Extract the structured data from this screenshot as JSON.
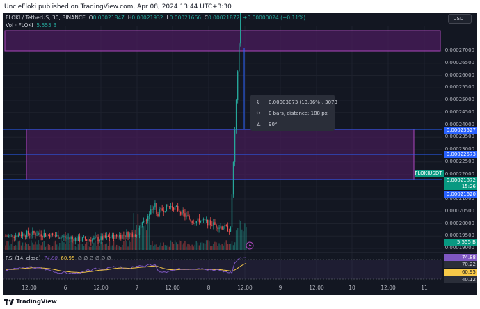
{
  "header": {
    "published_text": "UncleFloki published on TradingView.com, Apr 08, 2024 13:44 UTC+3:30"
  },
  "legend": {
    "symbol_line": "FLOKI / TetherUS, 30, BINANCE",
    "open_label": "O",
    "open": "0.00021847",
    "high_label": "H",
    "high": "0.00021932",
    "low_label": "L",
    "low": "0.00021666",
    "close_label": "C",
    "close": "0.00021872",
    "change": "+0.00000024 (+0.11%)",
    "vol_label": "Vol · FLOKI",
    "vol_value": "5.555 B"
  },
  "currency_button": "USDT",
  "price_axis": {
    "ticks": [
      "0.00027000",
      "0.00026500",
      "0.00026000",
      "0.00025500",
      "0.00025000",
      "0.00024500",
      "0.00024000",
      "0.00023500",
      "0.00023000",
      "0.00022500",
      "0.00022000",
      "0.00021500",
      "0.00021000",
      "0.00020500",
      "0.00020000",
      "0.00019500",
      "0.00019000"
    ],
    "badge_upper": "0.00023527",
    "badge_mid": "0.00022573",
    "badge_symbol": "FLOKIUSDT",
    "badge_price": "0.00021872",
    "badge_countdown": "15:26",
    "badge_lower": "0.00021620",
    "badge_volume": "5.555 B",
    "rsi_ticks": [
      "74.88",
      "70.22",
      "60.95",
      "40.12"
    ]
  },
  "time_axis": {
    "labels": [
      "12:00",
      "6",
      "12:00",
      "7",
      "12:00",
      "8",
      "12:00",
      "9",
      "12:00",
      "10",
      "12:00",
      "11"
    ]
  },
  "measure_tooltip": {
    "price_range": "0.00003073 (13.06%), 3073",
    "bars": "0 bars, distance: 188 px",
    "angle": "90°"
  },
  "rsi": {
    "label": "RSI (14, close)",
    "value1": "74.88",
    "value2": "60.95",
    "placeholders": "∅ ∅ ∅ ∅ ∅ ∅"
  },
  "footer": {
    "brand": "TradingView"
  },
  "colors": {
    "background": "#131722",
    "up": "#26a69a",
    "down": "#ef5350",
    "zone_border": "#9c27b0",
    "measure_line": "#2962ff",
    "rsi_line": "#7e57c2",
    "rsi_ma": "#f7c948"
  }
}
